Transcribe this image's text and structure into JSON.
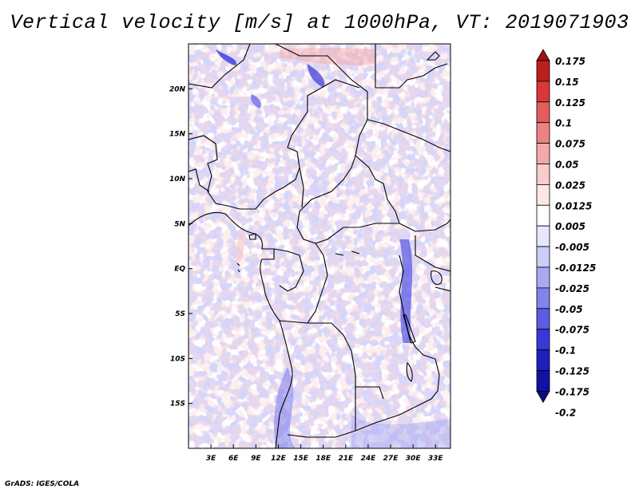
{
  "title": "Vertical velocity [m/s] at 1000hPa, VT: 2019071903",
  "footer": "GrADS: IGES/COLA",
  "map": {
    "projection": "lat-lon",
    "lon_range": [
      0,
      35
    ],
    "lat_range": [
      -20,
      25
    ],
    "lon_ticks": [
      {
        "value": 3,
        "label": "3E"
      },
      {
        "value": 6,
        "label": "6E"
      },
      {
        "value": 9,
        "label": "9E"
      },
      {
        "value": 12,
        "label": "12E"
      },
      {
        "value": 15,
        "label": "15E"
      },
      {
        "value": 18,
        "label": "18E"
      },
      {
        "value": 21,
        "label": "21E"
      },
      {
        "value": 24,
        "label": "24E"
      },
      {
        "value": 27,
        "label": "27E"
      },
      {
        "value": 30,
        "label": "30E"
      },
      {
        "value": 33,
        "label": "33E"
      }
    ],
    "lat_ticks": [
      {
        "value": 20,
        "label": "20N"
      },
      {
        "value": 15,
        "label": "15N"
      },
      {
        "value": 10,
        "label": "10N"
      },
      {
        "value": 5,
        "label": "5N"
      },
      {
        "value": 0,
        "label": "EQ"
      },
      {
        "value": -5,
        "label": "5S"
      },
      {
        "value": -10,
        "label": "10S"
      },
      {
        "value": -15,
        "label": "15S"
      }
    ]
  },
  "colorbar": {
    "colors": [
      "#a31111",
      "#bd1f1f",
      "#d93838",
      "#e55c5c",
      "#ec8383",
      "#f3a9a9",
      "#f9cccc",
      "#fde6e6",
      "#ffffff",
      "#e6e6fd",
      "#ccccf9",
      "#a9a9f3",
      "#8383ec",
      "#5c5ce5",
      "#3838d9",
      "#1f1fbd",
      "#1111a3",
      "#0b0b80"
    ],
    "labels": [
      "0.175",
      "0.15",
      "0.125",
      "0.1",
      "0.075",
      "0.05",
      "0.025",
      "0.0125",
      "0.005",
      "-0.005",
      "-0.0125",
      "-0.025",
      "-0.05",
      "-0.075",
      "-0.1",
      "-0.125",
      "-0.175",
      "-0.2"
    ]
  }
}
